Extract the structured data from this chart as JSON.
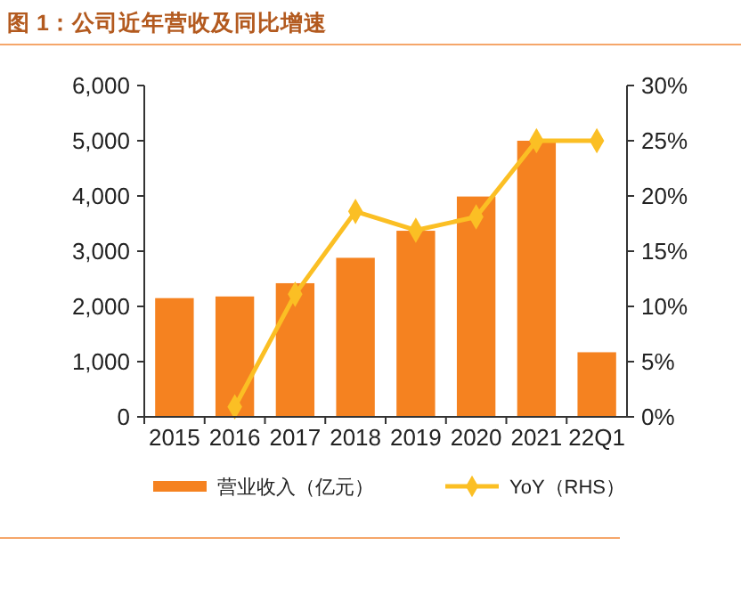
{
  "chart_data": {
    "type": "bar",
    "title": "图 1：公司近年营收及同比增速",
    "categories": [
      "2015",
      "2016",
      "2017",
      "2018",
      "2019",
      "2020",
      "2021",
      "22Q1"
    ],
    "series": [
      {
        "name": "营业收入（亿元）",
        "color": "#f58220",
        "values": [
          2150,
          2180,
          2420,
          2880,
          3370,
          3990,
          5000,
          1170
        ]
      },
      {
        "name": "YoY（RHS）",
        "type": "line",
        "axis": "y2",
        "color": "#fbbf24",
        "marker": "diamond",
        "values": [
          null,
          0.9,
          11.1,
          18.6,
          16.9,
          18.1,
          25.0,
          25.0
        ]
      }
    ],
    "ylim": [
      0,
      6000
    ],
    "yticks": [
      {
        "value": 0,
        "label": "0"
      },
      {
        "value": 1000,
        "label": "1,000"
      },
      {
        "value": 2000,
        "label": "2,000"
      },
      {
        "value": 3000,
        "label": "3,000"
      },
      {
        "value": 4000,
        "label": "4,000"
      },
      {
        "value": 5000,
        "label": "5,000"
      },
      {
        "value": 6000,
        "label": "6,000"
      }
    ],
    "y2lim": [
      0,
      30
    ],
    "y2ticks": [
      {
        "value": 0,
        "label": "0%"
      },
      {
        "value": 5,
        "label": "5%"
      },
      {
        "value": 10,
        "label": "10%"
      },
      {
        "value": 15,
        "label": "15%"
      },
      {
        "value": 20,
        "label": "20%"
      },
      {
        "value": 25,
        "label": "25%"
      },
      {
        "value": 30,
        "label": "30%"
      }
    ],
    "grid": false,
    "legend": "bottom"
  }
}
